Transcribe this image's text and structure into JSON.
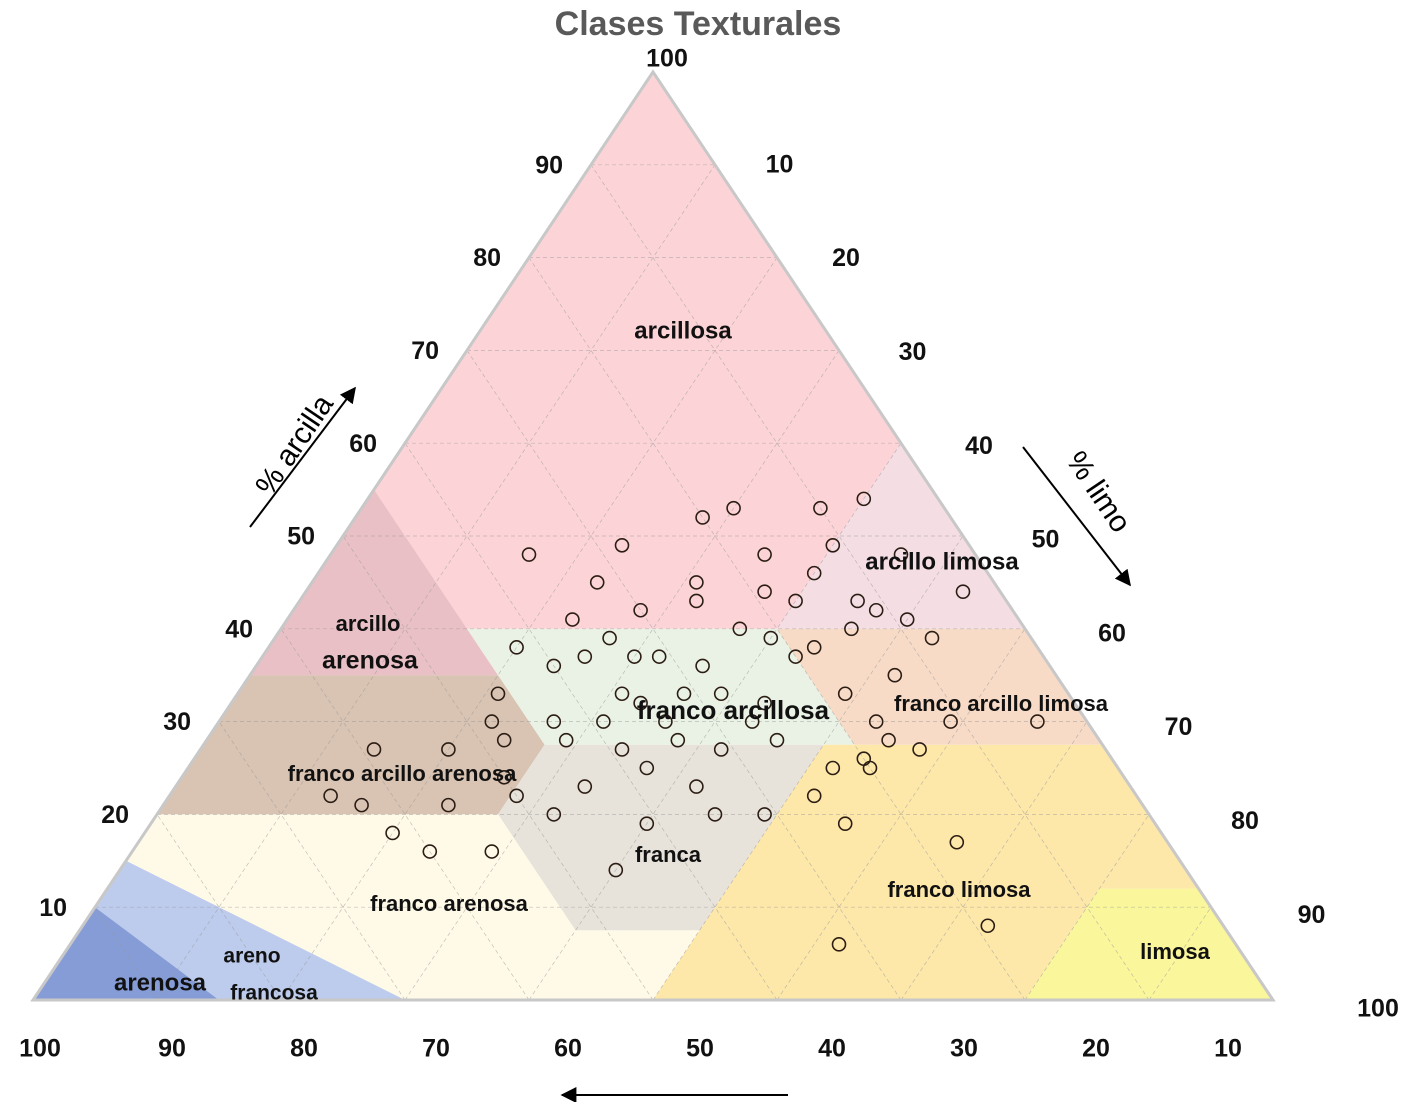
{
  "chart_data": {
    "type": "ternary",
    "title": "Clases Texturales",
    "a_label": "% arcilla",
    "b_label": "% limo",
    "clay_ticks": [
      10,
      20,
      30,
      40,
      50,
      60,
      70,
      80,
      90,
      100
    ],
    "silt_ticks": [
      10,
      20,
      30,
      40,
      50,
      60,
      70,
      80,
      90,
      100
    ],
    "sand_ticks": [
      100,
      90,
      80,
      70,
      60,
      50,
      40,
      30,
      20,
      10
    ],
    "grid": true,
    "regions": [
      {
        "label": "arcillosa",
        "color": "rgba(250,170,175,0.5)",
        "vertices": [
          [
            100,
            0
          ],
          [
            55,
            0
          ],
          [
            40,
            15
          ],
          [
            40,
            40
          ],
          [
            60,
            40
          ]
        ]
      },
      {
        "label": "arcillo limosa",
        "color": "rgba(235,195,205,0.55)",
        "vertices": [
          [
            60,
            40
          ],
          [
            40,
            60
          ],
          [
            40,
            40
          ]
        ]
      },
      {
        "label": [
          "arcillo",
          "arenosa"
        ],
        "color": "rgba(215,140,150,0.55)",
        "vertices": [
          [
            55,
            0
          ],
          [
            35,
            0
          ],
          [
            35,
            20
          ]
        ]
      },
      {
        "label": "franco arcillosa",
        "color": "rgba(230,240,225,0.85)",
        "vertices": [
          [
            40,
            40
          ],
          [
            40,
            15
          ],
          [
            27.5,
            27.5
          ],
          [
            27.5,
            52.5
          ]
        ]
      },
      {
        "label": "franco arcillo limosa",
        "color": "rgba(245,210,185,0.8)",
        "vertices": [
          [
            40,
            60
          ],
          [
            40,
            40
          ],
          [
            27.5,
            52.5
          ],
          [
            27.5,
            72.5
          ]
        ]
      },
      {
        "label": "franco arcillo arenosa",
        "color": "rgba(210,185,165,0.85)",
        "vertices": [
          [
            35,
            20
          ],
          [
            35,
            0
          ],
          [
            20,
            0
          ],
          [
            20,
            27.5
          ],
          [
            27.5,
            27.5
          ]
        ]
      },
      {
        "label": "franca",
        "color": "rgba(228,224,215,0.9)",
        "vertices": [
          [
            27.5,
            27.5
          ],
          [
            20,
            27.5
          ],
          [
            7.5,
            40
          ],
          [
            7.5,
            50
          ],
          [
            27.5,
            50
          ]
        ]
      },
      {
        "label": "franco limosa",
        "color": "rgba(253,228,160,0.9)",
        "vertices": [
          [
            27.5,
            72.5
          ],
          [
            27.5,
            50
          ],
          [
            0,
            50
          ],
          [
            0,
            80
          ],
          [
            12,
            80
          ],
          [
            12,
            88
          ]
        ]
      },
      {
        "label": "limosa",
        "color": "rgba(250,245,150,0.95)",
        "vertices": [
          [
            12,
            88
          ],
          [
            12,
            80
          ],
          [
            0,
            80
          ],
          [
            0,
            100
          ]
        ]
      },
      {
        "label": "franco arenosa",
        "color": "rgba(255,250,232,1)",
        "vertices": [
          [
            20,
            27.5
          ],
          [
            20,
            0
          ],
          [
            15,
            0
          ],
          [
            0,
            30
          ],
          [
            0,
            50
          ],
          [
            7.5,
            50
          ],
          [
            7.5,
            40
          ]
        ]
      },
      {
        "label": [
          "areno",
          "francosa"
        ],
        "color": "rgba(185,200,235,0.95)",
        "vertices": [
          [
            15,
            0
          ],
          [
            10,
            0
          ],
          [
            0,
            15
          ],
          [
            0,
            30
          ]
        ]
      },
      {
        "label": "arenosa",
        "color": "rgba(120,145,210,0.9)",
        "vertices": [
          [
            10,
            0
          ],
          [
            0,
            0
          ],
          [
            0,
            15
          ]
        ]
      }
    ],
    "point_color": "#2b1d14",
    "points": {
      "clay": [
        48,
        49,
        52,
        53,
        54,
        53,
        45,
        42,
        45,
        48,
        49,
        48,
        44,
        39,
        30,
        27,
        17,
        8,
        6,
        19,
        14,
        19,
        16,
        16,
        18,
        22,
        21,
        27,
        27,
        33,
        30,
        22,
        21,
        41,
        39,
        38,
        36,
        30,
        37,
        37,
        37,
        36,
        40,
        39,
        37,
        38,
        40,
        42,
        41,
        33,
        35,
        30,
        28,
        25,
        22,
        25,
        28,
        32,
        27,
        28,
        25,
        27,
        30,
        28,
        23,
        20,
        20,
        20,
        23,
        32,
        33,
        33,
        30,
        33,
        30,
        24,
        28,
        43,
        43,
        46,
        44,
        43,
        26,
        30
      ],
      "silt": [
        16,
        23,
        28,
        30,
        40,
        37,
        23,
        28,
        31,
        35,
        40,
        46,
        53,
        53,
        66,
        58,
        66,
        73,
        62,
        56,
        40,
        40,
        29,
        24,
        20,
        13,
        16,
        14,
        20,
        21,
        22,
        28,
        23,
        23,
        27,
        20,
        24,
        27,
        26,
        30,
        32,
        36,
        37,
        40,
        43,
        44,
        46,
        47,
        50,
        49,
        52,
        53,
        55,
        55,
        52,
        52,
        46,
        43,
        42,
        38,
        37,
        34,
        31,
        29,
        33,
        32,
        49,
        45,
        42,
        33,
        36,
        39,
        43,
        31,
        36,
        26,
        24,
        45,
        40,
        40,
        37,
        32,
        54,
        59
      ]
    }
  }
}
